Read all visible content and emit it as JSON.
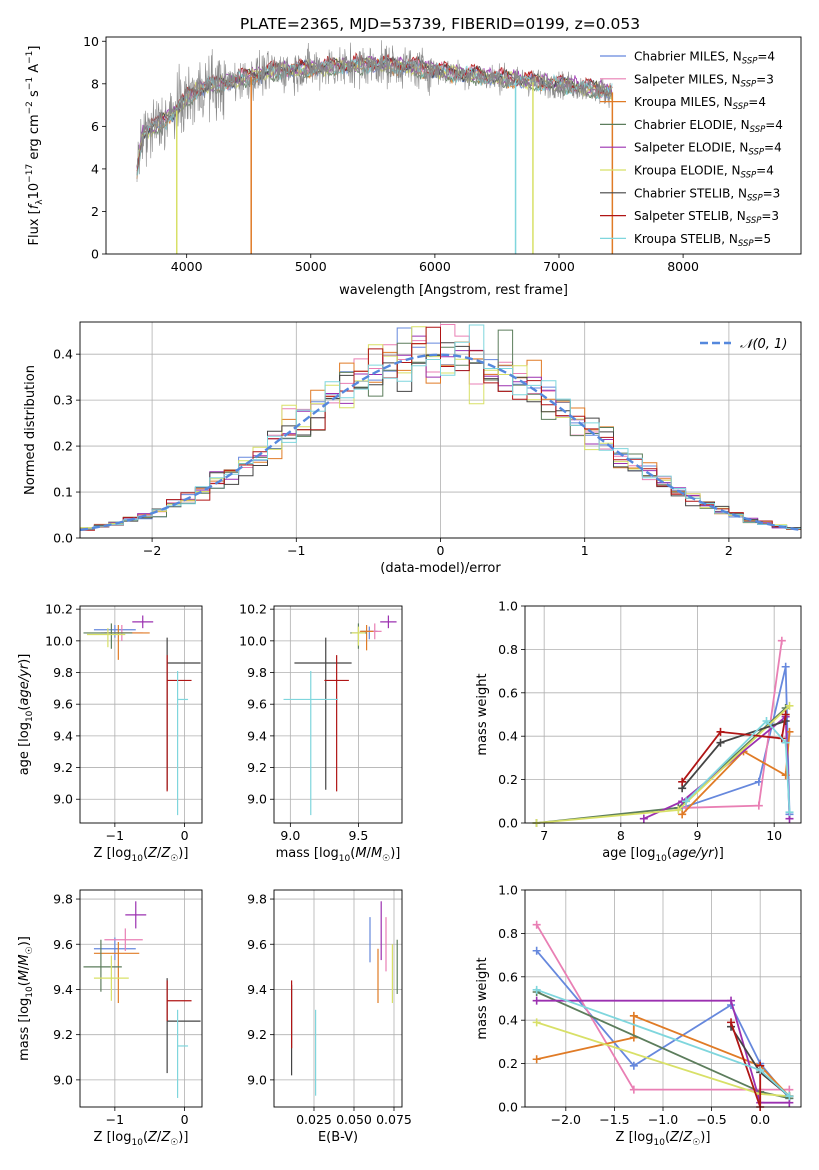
{
  "figure": {
    "title": "PLATE=2365, MJD=53739, FIBERID=0199, z=0.053"
  },
  "series_styles": [
    {
      "name": "Chabrier MILES",
      "nssp": "4",
      "color": "#6688dd"
    },
    {
      "name": "Salpeter MILES",
      "nssp": "3",
      "color": "#e97fb4"
    },
    {
      "name": "Kroupa MILES",
      "nssp": "4",
      "color": "#e07b26"
    },
    {
      "name": "Chabrier ELODIE",
      "nssp": "4",
      "color": "#5c7d5c"
    },
    {
      "name": "Salpeter ELODIE",
      "nssp": "4",
      "color": "#9b30b0"
    },
    {
      "name": "Kroupa ELODIE",
      "nssp": "4",
      "color": "#d8e067"
    },
    {
      "name": "Chabrier STELIB",
      "nssp": "3",
      "color": "#444444"
    },
    {
      "name": "Salpeter STELIB",
      "nssp": "3",
      "color": "#b01515"
    },
    {
      "name": "Kroupa STELIB",
      "nssp": "5",
      "color": "#7fd6dd"
    }
  ],
  "chart_data": [
    {
      "id": "spectrum",
      "type": "line",
      "title": "PLATE=2365, MJD=53739, FIBERID=0199, z=0.053",
      "xlabel": "wavelength [Angstrom, rest frame]",
      "ylabel": "Flux [f_λ 10^-17 erg cm^-2 s^-1 A^-1]",
      "xlim": [
        3350,
        8950
      ],
      "ylim": [
        0,
        10.2
      ],
      "xticks": [
        4000,
        5000,
        6000,
        7000,
        8000
      ],
      "yticks": [
        0,
        2,
        4,
        6,
        8,
        10
      ],
      "legend_position": "top-right",
      "data_color": "#888888",
      "continuum": [
        [
          3600,
          3.9
        ],
        [
          3650,
          5.7
        ],
        [
          3700,
          5.8
        ],
        [
          3800,
          6.2
        ],
        [
          3900,
          6.6
        ],
        [
          4000,
          7.3
        ],
        [
          4150,
          7.9
        ],
        [
          4300,
          8.0
        ],
        [
          4500,
          8.3
        ],
        [
          4700,
          8.6
        ],
        [
          5000,
          8.7
        ],
        [
          5200,
          8.8
        ],
        [
          5500,
          8.9
        ],
        [
          5800,
          8.8
        ],
        [
          6000,
          8.6
        ],
        [
          6300,
          8.4
        ],
        [
          6600,
          8.2
        ],
        [
          6900,
          8.0
        ],
        [
          7100,
          7.9
        ],
        [
          7300,
          7.7
        ],
        [
          7420,
          7.6
        ]
      ],
      "data_range": [
        3600,
        7430
      ],
      "model_range": [
        3600,
        7430
      ],
      "model_offsets": [
        0.0,
        0.05,
        -0.05,
        -0.1,
        0.08,
        0.02,
        0.1,
        0.15,
        -0.02
      ],
      "drop_lines": [
        {
          "x": 3920,
          "series": 5
        },
        {
          "x": 4520,
          "series": 2
        },
        {
          "x": 6650,
          "series": 8
        },
        {
          "x": 6790,
          "series": 5
        },
        {
          "x": 7430,
          "series": 2
        }
      ]
    },
    {
      "id": "residuals",
      "type": "line",
      "xlabel": "(data-model)/error",
      "ylabel": "Normed distribution",
      "xlim": [
        -2.5,
        2.5
      ],
      "ylim": [
        0,
        0.47
      ],
      "xticks": [
        -2,
        -1,
        0,
        1,
        2
      ],
      "yticks": [
        0.0,
        0.1,
        0.2,
        0.3,
        0.4
      ],
      "legend_position": "top-right",
      "legend_label": "𝒩(0, 1)",
      "gaussian_color": "#5588dd",
      "bin_width": 0.1
    },
    {
      "id": "age_vs_Z",
      "type": "scatter",
      "xlabel": "Z [log10(Z/Z☉)]",
      "ylabel": "age  [log10(age/yr)]",
      "xlim": [
        -1.5,
        0.25
      ],
      "ylim": [
        8.85,
        10.22
      ],
      "xticks": [
        -1,
        0
      ],
      "yticks": [
        9.0,
        9.2,
        9.4,
        9.6,
        9.8,
        10.0,
        10.2
      ],
      "points": [
        {
          "s": 0,
          "x": -1.0,
          "y": 10.07,
          "xerr": [
            0.3,
            0.3
          ],
          "yerr": [
            0.05,
            0.03
          ]
        },
        {
          "s": 1,
          "x": -0.9,
          "y": 10.05,
          "xerr": [
            0.3,
            0.3
          ],
          "yerr": [
            0.05,
            0.05
          ]
        },
        {
          "s": 2,
          "x": -0.95,
          "y": 10.05,
          "xerr": [
            0.2,
            0.45
          ],
          "yerr": [
            0.17,
            0.05
          ]
        },
        {
          "s": 3,
          "x": -1.05,
          "y": 10.05,
          "xerr": [
            0.4,
            0.3
          ],
          "yerr": [
            0.1,
            0.06
          ]
        },
        {
          "s": 4,
          "x": -0.6,
          "y": 10.12,
          "xerr": [
            0.15,
            0.15
          ],
          "yerr": [
            0.04,
            0.04
          ]
        },
        {
          "s": 5,
          "x": -1.1,
          "y": 10.04,
          "xerr": [
            0.3,
            0.25
          ],
          "yerr": [
            0.08,
            0.04
          ]
        },
        {
          "s": 6,
          "x": -0.25,
          "y": 9.86,
          "xerr": [
            0.0,
            0.48
          ],
          "yerr": [
            0.8,
            0.16
          ]
        },
        {
          "s": 7,
          "x": -0.25,
          "y": 9.75,
          "xerr": [
            0.0,
            0.35
          ],
          "yerr": [
            0.7,
            0.16
          ]
        },
        {
          "s": 8,
          "x": -0.1,
          "y": 9.63,
          "xerr": [
            0.0,
            0.15
          ],
          "yerr": [
            0.73,
            0.18
          ]
        }
      ]
    },
    {
      "id": "age_vs_mass",
      "type": "scatter",
      "xlabel": "mass [log10(M/M☉)]",
      "ylabel": "",
      "xlim": [
        8.88,
        9.82
      ],
      "ylim": [
        8.85,
        10.22
      ],
      "xticks": [
        9.0,
        9.5
      ],
      "yticks": [
        9.0,
        9.2,
        9.4,
        9.6,
        9.8,
        10.0,
        10.2
      ],
      "points": [
        {
          "s": 0,
          "x": 9.58,
          "y": 10.06,
          "xerr": [
            0.06,
            0.06
          ],
          "yerr": [
            0.05,
            0.03
          ]
        },
        {
          "s": 1,
          "x": 9.62,
          "y": 10.06,
          "xerr": [
            0.05,
            0.05
          ],
          "yerr": [
            0.05,
            0.05
          ]
        },
        {
          "s": 2,
          "x": 9.56,
          "y": 10.06,
          "xerr": [
            0.05,
            0.05
          ],
          "yerr": [
            0.12,
            0.04
          ]
        },
        {
          "s": 3,
          "x": 9.5,
          "y": 10.05,
          "xerr": [
            0.06,
            0.06
          ],
          "yerr": [
            0.1,
            0.06
          ]
        },
        {
          "s": 4,
          "x": 9.72,
          "y": 10.12,
          "xerr": [
            0.06,
            0.06
          ],
          "yerr": [
            0.04,
            0.04
          ]
        },
        {
          "s": 5,
          "x": 9.5,
          "y": 10.05,
          "xerr": [
            0.05,
            0.05
          ],
          "yerr": [
            0.08,
            0.04
          ]
        },
        {
          "s": 6,
          "x": 9.26,
          "y": 9.86,
          "xerr": [
            0.23,
            0.19
          ],
          "yerr": [
            0.8,
            0.16
          ]
        },
        {
          "s": 7,
          "x": 9.34,
          "y": 9.75,
          "xerr": [
            0.09,
            0.09
          ],
          "yerr": [
            0.7,
            0.16
          ]
        },
        {
          "s": 8,
          "x": 9.15,
          "y": 9.63,
          "xerr": [
            0.2,
            0.2
          ],
          "yerr": [
            0.73,
            0.18
          ]
        }
      ]
    },
    {
      "id": "weight_vs_age",
      "type": "line",
      "xlabel": "age  [log10(age/yr)]",
      "ylabel": "mass weight",
      "xlim": [
        6.75,
        10.35
      ],
      "ylim": [
        0,
        1.0
      ],
      "xticks": [
        7,
        8,
        9,
        10
      ],
      "yticks": [
        0.0,
        0.2,
        0.4,
        0.6,
        0.8,
        1.0
      ],
      "series": [
        {
          "s": 0,
          "points": [
            [
              8.8,
              0.07
            ],
            [
              9.8,
              0.19
            ],
            [
              10.15,
              0.72
            ],
            [
              10.2,
              0.04
            ]
          ]
        },
        {
          "s": 1,
          "points": [
            [
              8.85,
              0.07
            ],
            [
              9.8,
              0.08
            ],
            [
              10.1,
              0.84
            ]
          ]
        },
        {
          "s": 2,
          "points": [
            [
              8.8,
              0.04
            ],
            [
              9.6,
              0.33
            ],
            [
              10.15,
              0.22
            ],
            [
              10.2,
              0.42
            ]
          ]
        },
        {
          "s": 3,
          "points": [
            [
              6.9,
              0.0
            ],
            [
              8.75,
              0.07
            ],
            [
              10.15,
              0.53
            ]
          ]
        },
        {
          "s": 4,
          "points": [
            [
              8.3,
              0.02
            ],
            [
              8.8,
              0.1
            ],
            [
              10.15,
              0.49
            ],
            [
              10.2,
              0.02
            ]
          ]
        },
        {
          "s": 5,
          "points": [
            [
              6.9,
              0.0
            ],
            [
              8.75,
              0.06
            ],
            [
              10.2,
              0.54
            ]
          ]
        },
        {
          "s": 6,
          "points": [
            [
              8.8,
              0.16
            ],
            [
              9.3,
              0.37
            ],
            [
              10.15,
              0.47
            ]
          ]
        },
        {
          "s": 7,
          "points": [
            [
              8.8,
              0.19
            ],
            [
              9.3,
              0.42
            ],
            [
              10.1,
              0.39
            ],
            [
              10.15,
              0.5
            ]
          ]
        },
        {
          "s": 8,
          "points": [
            [
              8.85,
              0.1
            ],
            [
              9.9,
              0.47
            ],
            [
              10.15,
              0.37
            ],
            [
              10.2,
              0.05
            ]
          ]
        }
      ]
    },
    {
      "id": "mass_vs_Z",
      "type": "scatter",
      "xlabel": "Z [log10(Z/Z☉)]",
      "ylabel": "mass [log10(M/M☉)]",
      "xlim": [
        -1.5,
        0.25
      ],
      "ylim": [
        8.88,
        9.84
      ],
      "xticks": [
        -1,
        0
      ],
      "yticks": [
        9.0,
        9.2,
        9.4,
        9.6,
        9.8
      ],
      "points": [
        {
          "s": 0,
          "x": -1.0,
          "y": 9.58,
          "xerr": [
            0.3,
            0.3
          ],
          "yerr": [
            0.05,
            0.05
          ]
        },
        {
          "s": 1,
          "x": -0.85,
          "y": 9.62,
          "xerr": [
            0.3,
            0.25
          ],
          "yerr": [
            0.05,
            0.05
          ]
        },
        {
          "s": 2,
          "x": -0.95,
          "y": 9.56,
          "xerr": [
            0.35,
            0.3
          ],
          "yerr": [
            0.22,
            0.05
          ]
        },
        {
          "s": 3,
          "x": -1.2,
          "y": 9.5,
          "xerr": [
            0.25,
            0.3
          ],
          "yerr": [
            0.11,
            0.12
          ]
        },
        {
          "s": 4,
          "x": -0.7,
          "y": 9.73,
          "xerr": [
            0.15,
            0.15
          ],
          "yerr": [
            0.06,
            0.06
          ]
        },
        {
          "s": 5,
          "x": -1.05,
          "y": 9.45,
          "xerr": [
            0.25,
            0.25
          ],
          "yerr": [
            0.1,
            0.1
          ]
        },
        {
          "s": 6,
          "x": -0.25,
          "y": 9.26,
          "xerr": [
            0.0,
            0.48
          ],
          "yerr": [
            0.23,
            0.19
          ]
        },
        {
          "s": 7,
          "x": -0.25,
          "y": 9.35,
          "xerr": [
            0.0,
            0.35
          ],
          "yerr": [
            0.09,
            0.09
          ]
        },
        {
          "s": 8,
          "x": -0.1,
          "y": 9.15,
          "xerr": [
            0.0,
            0.15
          ],
          "yerr": [
            0.23,
            0.16
          ]
        }
      ]
    },
    {
      "id": "mass_vs_ebv",
      "type": "scatter",
      "xlabel": "E(B-V)",
      "ylabel": "",
      "xlim": [
        0.0,
        0.08
      ],
      "ylim": [
        8.88,
        9.84
      ],
      "xticks": [
        0.025,
        0.05,
        0.075
      ],
      "yticks": [
        9.0,
        9.2,
        9.4,
        9.6,
        9.8
      ],
      "points": [
        {
          "s": 0,
          "x": 0.06,
          "y": 9.62,
          "xerr": [
            0,
            0
          ],
          "yerr": [
            0.1,
            0.1
          ]
        },
        {
          "s": 1,
          "x": 0.07,
          "y": 9.6,
          "xerr": [
            0,
            0
          ],
          "yerr": [
            0.12,
            0.12
          ]
        },
        {
          "s": 2,
          "x": 0.065,
          "y": 9.46,
          "xerr": [
            0,
            0
          ],
          "yerr": [
            0.12,
            0.12
          ]
        },
        {
          "s": 3,
          "x": 0.077,
          "y": 9.5,
          "xerr": [
            0,
            0
          ],
          "yerr": [
            0.12,
            0.12
          ]
        },
        {
          "s": 4,
          "x": 0.067,
          "y": 9.66,
          "xerr": [
            0,
            0
          ],
          "yerr": [
            0.13,
            0.13
          ]
        },
        {
          "s": 5,
          "x": 0.074,
          "y": 9.47,
          "xerr": [
            0,
            0
          ],
          "yerr": [
            0.13,
            0.13
          ]
        },
        {
          "s": 6,
          "x": 0.011,
          "y": 9.22,
          "xerr": [
            0,
            0
          ],
          "yerr": [
            0.2,
            0.2
          ]
        },
        {
          "s": 7,
          "x": 0.011,
          "y": 9.29,
          "xerr": [
            0,
            0
          ],
          "yerr": [
            0.15,
            0.15
          ]
        },
        {
          "s": 8,
          "x": 0.026,
          "y": 9.12,
          "xerr": [
            0,
            0
          ],
          "yerr": [
            0.19,
            0.19
          ]
        }
      ]
    },
    {
      "id": "weight_vs_Z",
      "type": "line",
      "xlabel": "Z [log10(Z/Z☉)]",
      "ylabel": "mass weight",
      "xlim": [
        -2.42,
        0.42
      ],
      "ylim": [
        0,
        1.0
      ],
      "xticks": [
        -2.0,
        -1.5,
        -1.0,
        -0.5,
        0.0
      ],
      "yticks": [
        0.0,
        0.2,
        0.4,
        0.6,
        0.8,
        1.0
      ],
      "series": [
        {
          "s": 0,
          "points": [
            [
              -2.3,
              0.72
            ],
            [
              -1.3,
              0.19
            ],
            [
              -0.3,
              0.47
            ],
            [
              0.0,
              0.2
            ],
            [
              0.3,
              0.04
            ]
          ]
        },
        {
          "s": 1,
          "points": [
            [
              -2.3,
              0.84
            ],
            [
              -1.3,
              0.08
            ],
            [
              0.0,
              0.08
            ],
            [
              0.3,
              0.08
            ]
          ]
        },
        {
          "s": 2,
          "points": [
            [
              -2.3,
              0.22
            ],
            [
              -1.3,
              0.32
            ],
            [
              -1.3,
              0.42
            ],
            [
              0.0,
              0.19
            ],
            [
              0.3,
              0.05
            ]
          ]
        },
        {
          "s": 3,
          "points": [
            [
              -2.3,
              0.53
            ],
            [
              0.0,
              0.07
            ],
            [
              0.3,
              0.04
            ]
          ]
        },
        {
          "s": 4,
          "points": [
            [
              -2.3,
              0.49
            ],
            [
              -0.3,
              0.49
            ],
            [
              0.0,
              0.02
            ],
            [
              0.3,
              0.02
            ]
          ]
        },
        {
          "s": 5,
          "points": [
            [
              -2.3,
              0.39
            ],
            [
              0.0,
              0.06
            ],
            [
              0.3,
              0.05
            ]
          ]
        },
        {
          "s": 6,
          "points": [
            [
              -0.3,
              0.37
            ],
            [
              0.0,
              0.16
            ],
            [
              0.3,
              0.05
            ]
          ]
        },
        {
          "s": 7,
          "points": [
            [
              -0.3,
              0.39
            ],
            [
              0.0,
              0.0
            ],
            [
              0.0,
              0.19
            ]
          ]
        },
        {
          "s": 8,
          "points": [
            [
              -2.3,
              0.54
            ],
            [
              0.0,
              0.17
            ],
            [
              0.3,
              0.05
            ]
          ]
        }
      ]
    }
  ]
}
